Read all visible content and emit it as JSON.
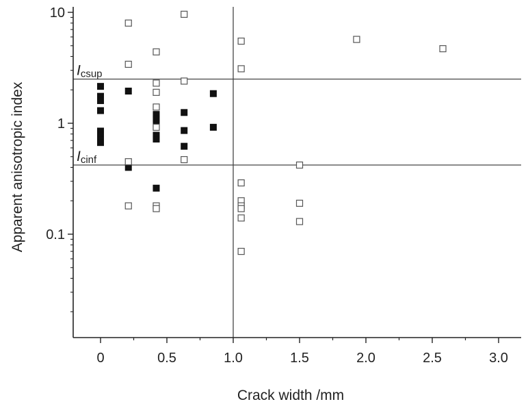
{
  "chart_data": {
    "type": "scatter",
    "xlabel": "Crack width /mm",
    "ylabel": "Apparent anisotropic index",
    "xlim": [
      -0.2,
      3.15
    ],
    "ylim": [
      0.01,
      10
    ],
    "yscale": "log",
    "x_ticks": [
      0,
      0.5,
      1.0,
      1.5,
      2.0,
      2.5,
      3.0
    ],
    "x_tick_labels": [
      "0",
      "0.5",
      "1.0",
      "1.5",
      "2.0",
      "2.5",
      "3.0"
    ],
    "y_ticks": [
      0.1,
      1,
      10
    ],
    "y_tick_labels": [
      "0.1",
      "1",
      "10"
    ],
    "reference_lines": [
      {
        "axis": "y",
        "value": 2.5,
        "label_main": "I",
        "label_sub": "csup"
      },
      {
        "axis": "y",
        "value": 0.42,
        "label_main": "I",
        "label_sub": "cinf"
      },
      {
        "axis": "x",
        "value": 1.0
      }
    ],
    "series": [
      {
        "marker": "filled-square",
        "color": "#111111",
        "points": [
          [
            0,
            2.15
          ],
          [
            0,
            1.75
          ],
          [
            0,
            1.6
          ],
          [
            0,
            1.3
          ],
          [
            0,
            0.85
          ],
          [
            0,
            0.78
          ],
          [
            0,
            0.72
          ],
          [
            0,
            0.67
          ],
          [
            0.21,
            1.95
          ],
          [
            0.21,
            0.4
          ],
          [
            0.42,
            1.2
          ],
          [
            0.42,
            1.1
          ],
          [
            0.42,
            1.0
          ],
          [
            0.42,
            0.78
          ],
          [
            0.42,
            0.72
          ],
          [
            0.42,
            0.26
          ],
          [
            0.63,
            1.25
          ],
          [
            0.63,
            0.86
          ],
          [
            0.63,
            0.62
          ],
          [
            0.85,
            1.85
          ],
          [
            0.85,
            0.92
          ]
        ]
      },
      {
        "marker": "open-square",
        "color": "#555555",
        "points": [
          [
            0.21,
            8.0
          ],
          [
            0.21,
            3.4
          ],
          [
            0.21,
            0.45
          ],
          [
            0.21,
            0.18
          ],
          [
            0.42,
            4.4
          ],
          [
            0.42,
            2.3
          ],
          [
            0.42,
            1.9
          ],
          [
            0.42,
            1.4
          ],
          [
            0.42,
            0.92
          ],
          [
            0.42,
            0.18
          ],
          [
            0.42,
            0.17
          ],
          [
            0.63,
            9.6
          ],
          [
            0.63,
            2.4
          ],
          [
            0.63,
            0.47
          ],
          [
            1.06,
            5.5
          ],
          [
            1.06,
            3.1
          ],
          [
            1.06,
            0.29
          ],
          [
            1.06,
            0.2
          ],
          [
            1.06,
            0.18
          ],
          [
            1.06,
            0.17
          ],
          [
            1.06,
            0.14
          ],
          [
            1.06,
            0.07
          ],
          [
            1.5,
            0.42
          ],
          [
            1.5,
            0.19
          ],
          [
            1.5,
            0.13
          ],
          [
            1.93,
            5.7
          ],
          [
            2.58,
            4.7
          ]
        ]
      }
    ]
  }
}
